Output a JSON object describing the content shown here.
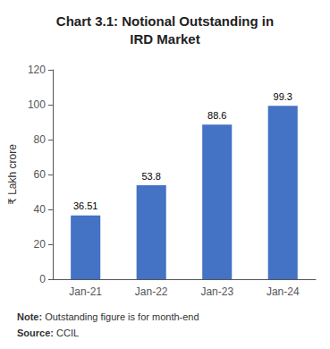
{
  "chart_data": {
    "type": "bar",
    "title": "Chart 3.1: Notional Outstanding in\nIRD Market",
    "categories": [
      "Jan-21",
      "Jan-22",
      "Jan-23",
      "Jan-24"
    ],
    "values": [
      36.51,
      53.8,
      88.6,
      99.3
    ],
    "color": "#4472C4",
    "ylabel": "₹ Lakh crore",
    "ylim": [
      0,
      120
    ],
    "yticks": [
      0,
      20,
      40,
      60,
      80,
      100,
      120
    ],
    "grid": false,
    "data_labels": true,
    "annotations": [
      "Note: Outstanding figure is for month-end",
      "Source: CCIL"
    ]
  }
}
